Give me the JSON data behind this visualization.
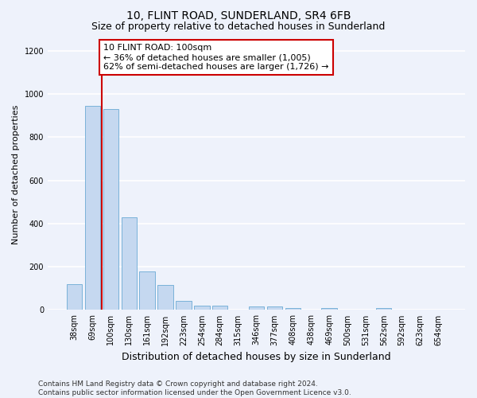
{
  "title": "10, FLINT ROAD, SUNDERLAND, SR4 6FB",
  "subtitle": "Size of property relative to detached houses in Sunderland",
  "xlabel": "Distribution of detached houses by size in Sunderland",
  "ylabel": "Number of detached properties",
  "categories": [
    "38sqm",
    "69sqm",
    "100sqm",
    "130sqm",
    "161sqm",
    "192sqm",
    "223sqm",
    "254sqm",
    "284sqm",
    "315sqm",
    "346sqm",
    "377sqm",
    "408sqm",
    "438sqm",
    "469sqm",
    "500sqm",
    "531sqm",
    "562sqm",
    "592sqm",
    "623sqm",
    "654sqm"
  ],
  "values": [
    120,
    945,
    930,
    430,
    180,
    115,
    43,
    20,
    20,
    0,
    18,
    18,
    10,
    0,
    8,
    0,
    0,
    8,
    0,
    0,
    0
  ],
  "bar_color": "#c5d8f0",
  "bar_edge_color": "#6aaad4",
  "highlight_index": 2,
  "highlight_line_color": "#cc0000",
  "annotation_text": "10 FLINT ROAD: 100sqm\n← 36% of detached houses are smaller (1,005)\n62% of semi-detached houses are larger (1,726) →",
  "annotation_box_color": "#ffffff",
  "annotation_box_edge_color": "#cc0000",
  "ylim": [
    0,
    1250
  ],
  "yticks": [
    0,
    200,
    400,
    600,
    800,
    1000,
    1200
  ],
  "footer_line1": "Contains HM Land Registry data © Crown copyright and database right 2024.",
  "footer_line2": "Contains public sector information licensed under the Open Government Licence v3.0.",
  "bg_color": "#eef2fb",
  "plot_bg_color": "#eef2fb",
  "grid_color": "#ffffff",
  "title_fontsize": 10,
  "subtitle_fontsize": 9,
  "xlabel_fontsize": 9,
  "ylabel_fontsize": 8,
  "tick_fontsize": 7,
  "annotation_fontsize": 8,
  "footer_fontsize": 6.5
}
